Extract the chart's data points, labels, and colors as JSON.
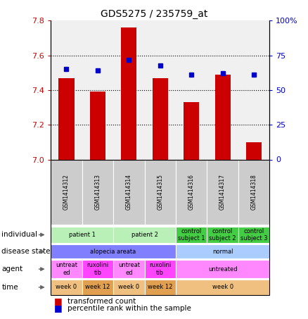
{
  "title": "GDS5275 / 235759_at",
  "samples": [
    "GSM1414312",
    "GSM1414313",
    "GSM1414314",
    "GSM1414315",
    "GSM1414316",
    "GSM1414317",
    "GSM1414318"
  ],
  "transformed_count": [
    7.47,
    7.39,
    7.76,
    7.47,
    7.33,
    7.49,
    7.1
  ],
  "percentile_rank": [
    65,
    64,
    72,
    68,
    61,
    62,
    61
  ],
  "ylim_left": [
    7.0,
    7.8
  ],
  "ylim_right": [
    0,
    100
  ],
  "yticks_left": [
    7.0,
    7.2,
    7.4,
    7.6,
    7.8
  ],
  "yticks_right": [
    0,
    25,
    50,
    75,
    100
  ],
  "bar_color": "#cc0000",
  "dot_color": "#0000cc",
  "left_axis_color": "#cc0000",
  "right_axis_color": "#0000cc",
  "individual_groups": [
    {
      "label": "patient 1",
      "cols": [
        0,
        1
      ],
      "color": "#b8f0b8"
    },
    {
      "label": "patient 2",
      "cols": [
        2,
        3
      ],
      "color": "#b8f0b8"
    },
    {
      "label": "control\nsubject 1",
      "cols": [
        4
      ],
      "color": "#44cc44"
    },
    {
      "label": "control\nsubject 2",
      "cols": [
        5
      ],
      "color": "#44cc44"
    },
    {
      "label": "control\nsubject 3",
      "cols": [
        6
      ],
      "color": "#44cc44"
    }
  ],
  "disease_groups": [
    {
      "label": "alopecia areata",
      "cols": [
        0,
        1,
        2,
        3
      ],
      "color": "#8080ff"
    },
    {
      "label": "normal",
      "cols": [
        4,
        5,
        6
      ],
      "color": "#aaccff"
    }
  ],
  "agent_groups": [
    {
      "label": "untreat\ned",
      "cols": [
        0
      ],
      "color": "#ff88ff"
    },
    {
      "label": "ruxolini\ntib",
      "cols": [
        1
      ],
      "color": "#ff44ff"
    },
    {
      "label": "untreat\ned",
      "cols": [
        2
      ],
      "color": "#ff88ff"
    },
    {
      "label": "ruxolini\ntib",
      "cols": [
        3
      ],
      "color": "#ff44ff"
    },
    {
      "label": "untreated",
      "cols": [
        4,
        5,
        6
      ],
      "color": "#ff88ff"
    }
  ],
  "time_groups": [
    {
      "label": "week 0",
      "cols": [
        0
      ],
      "color": "#f0c080"
    },
    {
      "label": "week 12",
      "cols": [
        1
      ],
      "color": "#e0a050"
    },
    {
      "label": "week 0",
      "cols": [
        2
      ],
      "color": "#f0c080"
    },
    {
      "label": "week 12",
      "cols": [
        3
      ],
      "color": "#e0a050"
    },
    {
      "label": "week 0",
      "cols": [
        4,
        5,
        6
      ],
      "color": "#f0c080"
    }
  ]
}
